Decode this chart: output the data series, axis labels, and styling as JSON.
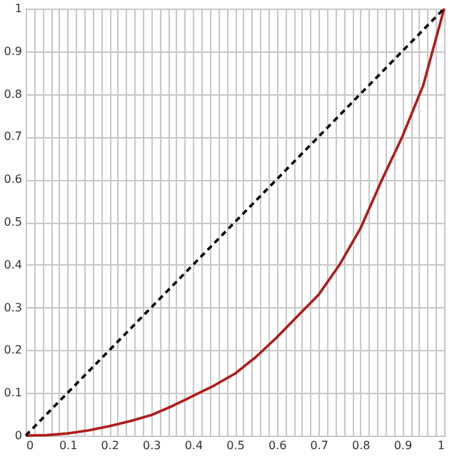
{
  "chart_data": {
    "type": "line",
    "x": [
      0,
      0.05,
      0.1,
      0.15,
      0.2,
      0.25,
      0.3,
      0.35,
      0.4,
      0.45,
      0.5,
      0.55,
      0.6,
      0.65,
      0.7,
      0.75,
      0.8,
      0.85,
      0.9,
      0.95,
      1
    ],
    "series": [
      {
        "color": "#b01c1c",
        "line_style": "solid",
        "values": [
          0,
          0.001,
          0.005,
          0.012,
          0.022,
          0.034,
          0.048,
          0.069,
          0.093,
          0.117,
          0.145,
          0.184,
          0.23,
          0.28,
          0.33,
          0.4,
          0.485,
          0.596,
          0.7,
          0.82,
          1
        ]
      },
      {
        "color": "#000000",
        "line_style": "dashed",
        "x": [
          0,
          1
        ],
        "values": [
          0,
          1
        ]
      }
    ],
    "xlim": [
      0,
      1
    ],
    "ylim": [
      0,
      1
    ],
    "xticks": [
      0,
      {
        "value": 0.02,
        "label": null
      },
      {
        "value": 0.04,
        "label": null
      },
      {
        "value": 0.06,
        "label": null
      },
      {
        "value": 0.08,
        "label": null
      },
      0.1,
      {
        "value": 0.12,
        "label": null
      },
      {
        "value": 0.14,
        "label": null
      },
      {
        "value": 0.16,
        "label": null
      },
      {
        "value": 0.18,
        "label": null
      },
      0.2,
      {
        "value": 0.22,
        "label": null
      },
      {
        "value": 0.24,
        "label": null
      },
      {
        "value": 0.26,
        "label": null
      },
      {
        "value": 0.28,
        "label": null
      },
      0.3,
      {
        "value": 0.32,
        "label": null
      },
      {
        "value": 0.34,
        "label": null
      },
      {
        "value": 0.36,
        "label": null
      },
      {
        "value": 0.38,
        "label": null
      },
      0.4,
      {
        "value": 0.42,
        "label": null
      },
      {
        "value": 0.44,
        "label": null
      },
      {
        "value": 0.46,
        "label": null
      },
      {
        "value": 0.48,
        "label": null
      },
      0.5,
      {
        "value": 0.52,
        "label": null
      },
      {
        "value": 0.54,
        "label": null
      },
      {
        "value": 0.56,
        "label": null
      },
      {
        "value": 0.58,
        "label": null
      },
      0.6,
      {
        "value": 0.62,
        "label": null
      },
      {
        "value": 0.64,
        "label": null
      },
      {
        "value": 0.66,
        "label": null
      },
      {
        "value": 0.68,
        "label": null
      },
      0.7,
      {
        "value": 0.72,
        "label": null
      },
      {
        "value": 0.74,
        "label": null
      },
      {
        "value": 0.76,
        "label": null
      },
      {
        "value": 0.78,
        "label": null
      },
      0.8,
      {
        "value": 0.82,
        "label": null
      },
      {
        "value": 0.84,
        "label": null
      },
      {
        "value": 0.86,
        "label": null
      },
      {
        "value": 0.88,
        "label": null
      },
      0.9,
      {
        "value": 0.92,
        "label": null
      },
      {
        "value": 0.94,
        "label": null
      },
      {
        "value": 0.96,
        "label": null
      },
      {
        "value": 0.98,
        "label": null
      },
      1
    ],
    "yticks": [
      0,
      0.1,
      0.2,
      0.3,
      0.4,
      0.5,
      0.6,
      0.7,
      0.8,
      0.9,
      1
    ],
    "grid": true,
    "marker": "none"
  }
}
